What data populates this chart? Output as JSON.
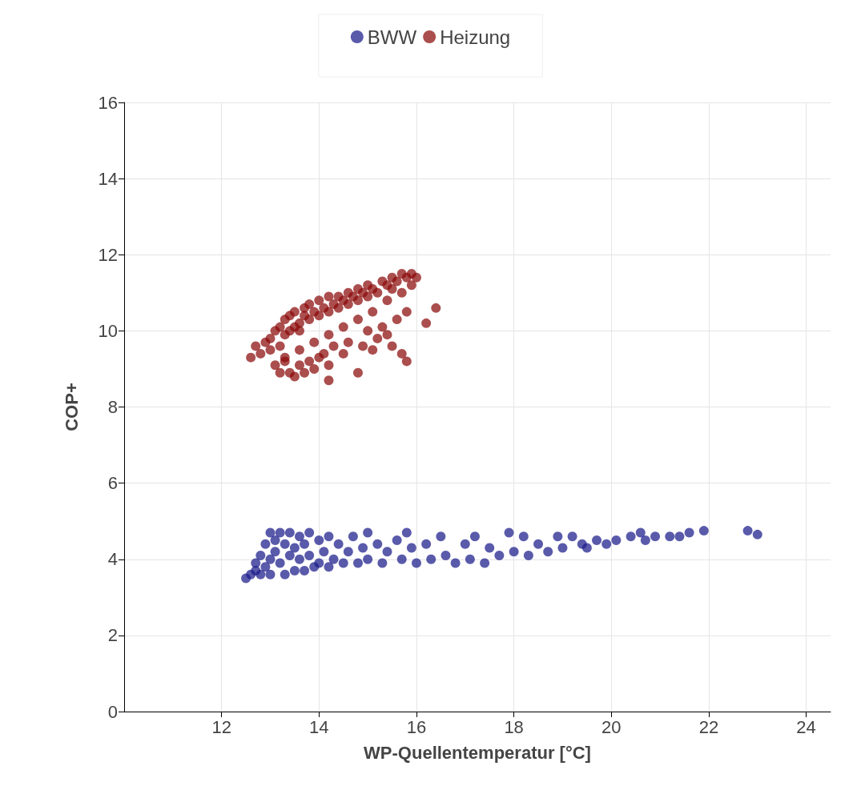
{
  "chart_data": {
    "type": "scatter",
    "xlabel": "WP-Quellentemperatur [°C]",
    "ylabel": "COP+",
    "xlim": [
      10,
      24.5
    ],
    "ylim": [
      0,
      16
    ],
    "xticks": [
      12,
      14,
      16,
      18,
      20,
      22,
      24
    ],
    "yticks": [
      0,
      2,
      4,
      6,
      8,
      10,
      12,
      14,
      16
    ],
    "grid": true,
    "legend": "top",
    "marker": "circle",
    "series": [
      {
        "name": "BWW",
        "color": "#1b1b8a",
        "x": [
          12.5,
          12.6,
          12.7,
          12.7,
          12.8,
          12.8,
          12.9,
          12.9,
          13.0,
          13.0,
          13.0,
          13.1,
          13.1,
          13.2,
          13.2,
          13.3,
          13.3,
          13.4,
          13.4,
          13.5,
          13.5,
          13.6,
          13.6,
          13.7,
          13.7,
          13.8,
          13.8,
          13.9,
          14.0,
          14.0,
          14.1,
          14.2,
          14.2,
          14.3,
          14.4,
          14.5,
          14.6,
          14.7,
          14.8,
          14.9,
          15.0,
          15.0,
          15.2,
          15.3,
          15.4,
          15.6,
          15.7,
          15.8,
          15.9,
          16.0,
          16.2,
          16.3,
          16.5,
          16.6,
          16.8,
          17.0,
          17.1,
          17.2,
          17.4,
          17.5,
          17.7,
          17.9,
          18.0,
          18.2,
          18.3,
          18.5,
          18.7,
          18.9,
          19.0,
          19.2,
          19.4,
          19.5,
          19.7,
          19.9,
          20.1,
          20.4,
          20.6,
          20.7,
          20.9,
          21.2,
          21.4,
          21.6,
          21.9,
          22.8,
          23.0
        ],
        "values": [
          3.5,
          3.6,
          3.7,
          3.9,
          4.1,
          3.6,
          4.4,
          3.8,
          4.7,
          4.0,
          3.6,
          4.5,
          4.2,
          4.7,
          3.9,
          4.4,
          3.6,
          4.7,
          4.1,
          4.3,
          3.7,
          4.6,
          4.0,
          4.4,
          3.7,
          4.7,
          4.1,
          3.8,
          4.5,
          3.9,
          4.2,
          4.6,
          3.8,
          4.0,
          4.4,
          3.9,
          4.2,
          4.6,
          3.9,
          4.3,
          4.7,
          4.0,
          4.4,
          3.9,
          4.2,
          4.5,
          4.0,
          4.7,
          4.3,
          3.9,
          4.4,
          4.0,
          4.6,
          4.1,
          3.9,
          4.4,
          4.0,
          4.6,
          3.9,
          4.3,
          4.1,
          4.7,
          4.2,
          4.6,
          4.1,
          4.4,
          4.2,
          4.6,
          4.3,
          4.6,
          4.4,
          4.3,
          4.5,
          4.4,
          4.5,
          4.6,
          4.7,
          4.5,
          4.6,
          4.6,
          4.6,
          4.7,
          4.75,
          4.75,
          4.65
        ]
      },
      {
        "name": "Heizung",
        "color": "#8b0a0a",
        "x": [
          12.6,
          12.7,
          12.8,
          12.9,
          13.0,
          13.0,
          13.1,
          13.2,
          13.2,
          13.3,
          13.3,
          13.4,
          13.4,
          13.5,
          13.5,
          13.6,
          13.6,
          13.7,
          13.7,
          13.8,
          13.8,
          13.9,
          14.0,
          14.0,
          14.1,
          14.2,
          14.2,
          14.3,
          14.4,
          14.4,
          14.5,
          14.6,
          14.6,
          14.7,
          14.8,
          14.8,
          14.9,
          15.0,
          15.0,
          15.1,
          15.2,
          15.3,
          15.4,
          15.5,
          15.5,
          15.6,
          15.7,
          15.8,
          15.9,
          16.0,
          15.9,
          15.7,
          15.4,
          15.1,
          14.8,
          14.5,
          14.2,
          13.9,
          13.6,
          13.3,
          13.1,
          13.2,
          13.3,
          13.4,
          13.5,
          13.6,
          13.7,
          13.8,
          13.9,
          14.0,
          14.1,
          14.2,
          14.2,
          14.3,
          14.5,
          14.6,
          14.8,
          14.9,
          15.0,
          15.1,
          15.2,
          15.3,
          15.4,
          15.5,
          15.6,
          15.7,
          15.8,
          15.8,
          16.2,
          16.4
        ],
        "values": [
          9.3,
          9.6,
          9.4,
          9.7,
          9.5,
          9.8,
          10.0,
          9.6,
          10.1,
          9.9,
          10.3,
          10.0,
          10.4,
          10.1,
          10.5,
          10.2,
          10.0,
          10.4,
          10.6,
          10.3,
          10.7,
          10.5,
          10.4,
          10.8,
          10.6,
          10.5,
          10.9,
          10.7,
          10.6,
          10.9,
          10.8,
          10.7,
          11.0,
          10.9,
          10.8,
          11.1,
          11.0,
          10.9,
          11.2,
          11.1,
          11.0,
          11.3,
          11.2,
          11.1,
          11.4,
          11.3,
          11.5,
          11.4,
          11.5,
          11.4,
          11.2,
          11.0,
          10.8,
          10.5,
          10.3,
          10.1,
          9.9,
          9.7,
          9.5,
          9.3,
          9.1,
          8.9,
          9.2,
          8.9,
          8.8,
          9.1,
          8.9,
          9.2,
          9.0,
          9.3,
          9.4,
          9.1,
          8.7,
          9.6,
          9.4,
          9.7,
          8.9,
          9.6,
          10.0,
          9.5,
          9.8,
          10.1,
          9.9,
          9.6,
          10.3,
          9.4,
          9.2,
          10.5,
          10.2,
          10.6
        ]
      }
    ]
  }
}
